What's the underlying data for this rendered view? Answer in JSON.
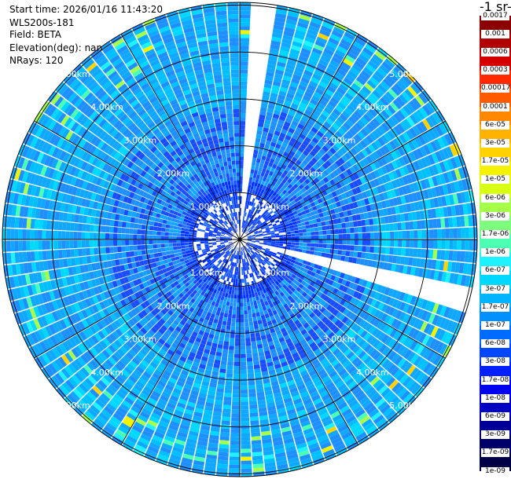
{
  "meta": {
    "start_time": "Start time: 2026/01/16 11:43:20",
    "instrument": "WLS200s-181",
    "field": "Field: BETA",
    "elevation": "Elevation(deg): nan",
    "nrays": "NRays: 120"
  },
  "colorbar": {
    "unit_label": "-1 sr-",
    "ticks": [
      "0.0017",
      "0.001",
      "0.0006",
      "0.0003",
      "0.00017",
      "0.0001",
      "6e-05",
      "3e-05",
      "1.7e-05",
      "1e-05",
      "6e-06",
      "3e-06",
      "1.7e-06",
      "1e-06",
      "6e-07",
      "3e-07",
      "1.7e-07",
      "1e-07",
      "6e-08",
      "3e-08",
      "1.7e-08",
      "1e-08",
      "6e-09",
      "3e-09",
      "1.7e-09",
      "1e-09"
    ],
    "colors": [
      "#8b0000",
      "#b00000",
      "#d40000",
      "#ff2a00",
      "#ff5a00",
      "#ff8800",
      "#ffb300",
      "#ffd200",
      "#f5f200",
      "#d8ff14",
      "#a6ff4a",
      "#7dff7d",
      "#4dffb3",
      "#1ff2ff",
      "#00d8ff",
      "#00b4ff",
      "#0090ff",
      "#006cff",
      "#0048ff",
      "#0020ff",
      "#0000f0",
      "#0000c4",
      "#000096",
      "#00006a",
      "#000046"
    ]
  },
  "chart_data": {
    "type": "heatmap",
    "projection": "polar",
    "nrays": 120,
    "range_unit": "km",
    "range_rings": [
      1,
      2,
      3,
      4,
      5
    ],
    "ring_labels": [
      "1.00km",
      "2.00km",
      "3.00km",
      "4.00km",
      "5.00km"
    ],
    "spoke_angles_deg": [
      0,
      30,
      60,
      90,
      120,
      150,
      180,
      210,
      240,
      270,
      300,
      330
    ],
    "missing_sectors_deg": [
      [
        3,
        8
      ],
      [
        100,
        105
      ]
    ],
    "dominant_level": "3e-08",
    "max_level": "3e-05"
  }
}
